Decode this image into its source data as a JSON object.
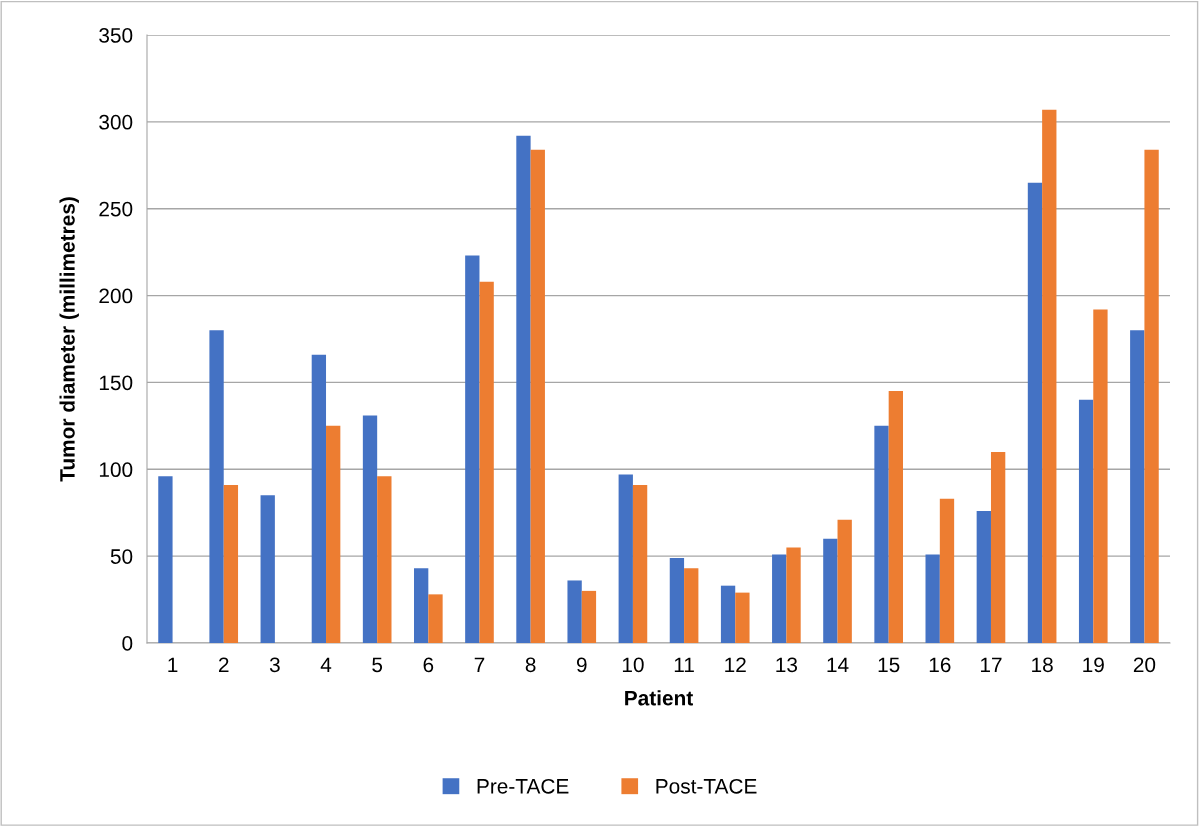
{
  "chart_data": {
    "type": "bar",
    "xlabel": "Patient",
    "ylabel": "Tumor diameter (millimetres)",
    "categories": [
      "1",
      "2",
      "3",
      "4",
      "5",
      "6",
      "7",
      "8",
      "9",
      "10",
      "11",
      "12",
      "13",
      "14",
      "15",
      "16",
      "17",
      "18",
      "19",
      "20"
    ],
    "series": [
      {
        "name": "Pre-TACE",
        "color": "#4472c4",
        "values": [
          96,
          180,
          85,
          166,
          131,
          43,
          223,
          292,
          36,
          97,
          49,
          33,
          51,
          60,
          125,
          51,
          76,
          265,
          140,
          180
        ]
      },
      {
        "name": "Post-TACE",
        "color": "#ed7d31",
        "values": [
          null,
          91,
          null,
          125,
          96,
          28,
          208,
          284,
          30,
          91,
          43,
          29,
          55,
          71,
          145,
          83,
          110,
          307,
          192,
          284
        ]
      }
    ],
    "ylim": [
      0,
      350
    ],
    "yticks": [
      0,
      50,
      100,
      150,
      200,
      250,
      300,
      350
    ],
    "grid": "y",
    "legend": "bottom"
  }
}
